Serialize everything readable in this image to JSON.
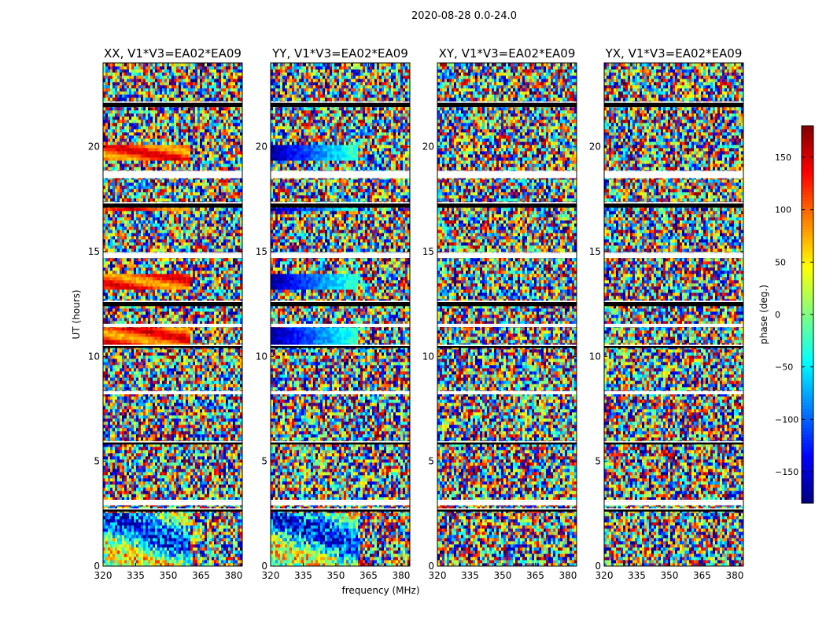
{
  "suptitle": "2020-08-28 0.0-24.0",
  "chart_data": {
    "type": "heatmap",
    "panels": [
      {
        "title": "XX, V1*V3=EA02*EA09",
        "pol": "XX"
      },
      {
        "title": "YY, V1*V3=EA02*EA09",
        "pol": "YY"
      },
      {
        "title": "XY, V1*V3=EA02*EA09",
        "pol": "XY"
      },
      {
        "title": "YX, V1*V3=EA02*EA09",
        "pol": "YX"
      }
    ],
    "xlabel": "frequency (MHz)",
    "ylabel": "UT (hours)",
    "xlim": [
      320,
      384
    ],
    "ylim": [
      0,
      24
    ],
    "xticks": [
      320,
      335,
      350,
      365,
      380
    ],
    "yticks": [
      0,
      5,
      10,
      15,
      20
    ],
    "colorbar": {
      "label": "phase (deg.)",
      "range": [
        -180,
        180
      ],
      "ticks": [
        150,
        100,
        50,
        0,
        -50,
        -100,
        -150
      ],
      "colormap": "jet"
    },
    "flagged_bands_hours": [
      [
        2.6,
        2.7
      ],
      [
        2.9,
        3.1
      ],
      [
        5.8,
        5.9
      ],
      [
        8.2,
        8.3
      ],
      [
        10.4,
        10.5
      ],
      [
        11.4,
        11.5
      ],
      [
        12.4,
        12.6
      ],
      [
        14.7,
        14.9
      ],
      [
        17.1,
        17.3
      ],
      [
        18.5,
        18.8
      ],
      [
        21.9,
        22.1
      ]
    ],
    "coherent_features": [
      {
        "panels": [
          "XX",
          "YY"
        ],
        "hours": [
          19.4,
          20.1
        ],
        "freq_range": [
          320,
          360
        ]
      },
      {
        "panels": [
          "XX",
          "YY"
        ],
        "hours": [
          10.5,
          11.4
        ],
        "freq_range": [
          320,
          360
        ]
      },
      {
        "panels": [
          "XX",
          "YY"
        ],
        "hours": [
          16.9,
          17.1
        ],
        "freq_range": [
          320,
          360
        ]
      },
      {
        "panels": [
          "XX",
          "YY"
        ],
        "hours": [
          13.2,
          13.9
        ],
        "freq_range": [
          320,
          360
        ]
      }
    ]
  }
}
